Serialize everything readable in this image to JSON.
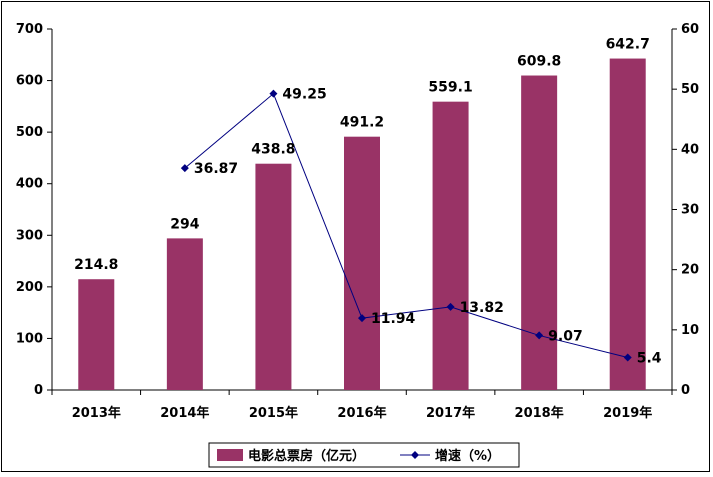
{
  "chart_data": {
    "type": "bar",
    "categories": [
      "2013年",
      "2014年",
      "2015年",
      "2016年",
      "2017年",
      "2018年",
      "2019年"
    ],
    "series": [
      {
        "name": "电影总票房（亿元）",
        "kind": "bar",
        "axis": "left",
        "color": "#993366",
        "values": [
          214.8,
          294,
          438.8,
          491.2,
          559.1,
          609.8,
          642.7
        ],
        "labels": [
          "214.8",
          "294",
          "438.8",
          "491.2",
          "559.1",
          "609.8",
          "642.7"
        ]
      },
      {
        "name": "增速（%）",
        "kind": "line",
        "axis": "right",
        "color": "#000080",
        "values": [
          null,
          36.87,
          49.25,
          11.94,
          13.82,
          9.07,
          5.4
        ],
        "labels": [
          null,
          "36.87",
          "49.25",
          "11.94",
          "13.82",
          "9.07",
          "5.4"
        ]
      }
    ],
    "y_left": {
      "min": 0,
      "max": 700,
      "ticks": [
        "0",
        "100",
        "200",
        "300",
        "400",
        "500",
        "600",
        "700"
      ]
    },
    "y_right": {
      "min": 0,
      "max": 60,
      "ticks": [
        "0",
        "10",
        "20",
        "30",
        "40",
        "50",
        "60"
      ]
    },
    "grid": false,
    "legend": "bottom"
  }
}
